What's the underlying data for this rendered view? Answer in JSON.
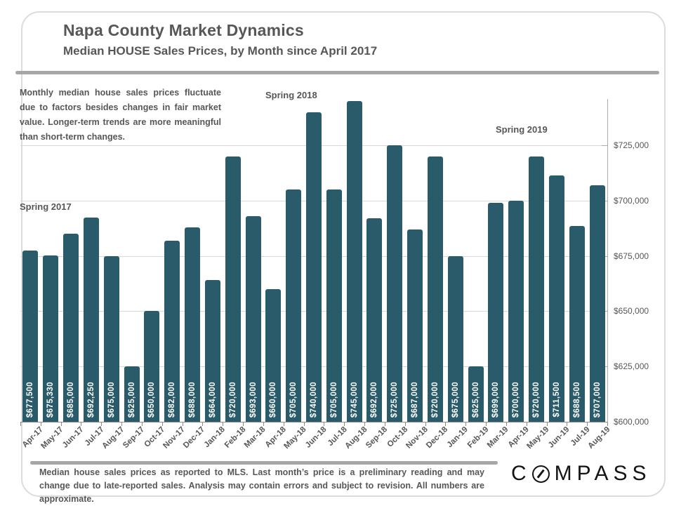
{
  "header": {
    "title": "Napa County Market Dynamics",
    "subtitle": "Median HOUSE Sales Prices, by Month since April 2017"
  },
  "annotation": "Monthly median house sales prices fluctuate due to factors besides changes in fair market value. Longer-term trends are more meaningful than short-term changes.",
  "chart_data": {
    "type": "bar",
    "title": "Median HOUSE Sales Prices, by Month since April 2017",
    "categories": [
      "Apr-17",
      "May-17",
      "Jun-17",
      "Jul-17",
      "Aug-17",
      "Sep-17",
      "Oct-17",
      "Nov-17",
      "Dec-17",
      "Jan-18",
      "Feb-18",
      "Mar-18",
      "Apr-18",
      "May-18",
      "Jun-18",
      "Jul-18",
      "Aug-18",
      "Sep-18",
      "Oct-18",
      "Nov-18",
      "Dec-18",
      "Jan-19",
      "Feb-19",
      "Mar-19",
      "Apr-19",
      "May-19",
      "Jun-19",
      "Jul-19",
      "Aug-19"
    ],
    "values": [
      677500,
      675330,
      685000,
      692250,
      675000,
      625000,
      650000,
      682000,
      688000,
      664000,
      720000,
      693000,
      660000,
      705000,
      740000,
      705000,
      745000,
      692000,
      725000,
      687000,
      720000,
      675000,
      625000,
      699000,
      700000,
      720000,
      711500,
      688500,
      707000
    ],
    "value_labels": [
      "$677,500",
      "$675,330",
      "$685,000",
      "$692,250",
      "$675,000",
      "$625,000",
      "$650,000",
      "$682,000",
      "$688,000",
      "$664,000",
      "$720,000",
      "$693,000",
      "$660,000",
      "$705,000",
      "$740,000",
      "$705,000",
      "$745,000",
      "$692,000",
      "$725,000",
      "$687,000",
      "$720,000",
      "$675,000",
      "$625,000",
      "$699,000",
      "$700,000",
      "$720,000",
      "$711,500",
      "$688,500",
      "$707,000"
    ],
    "ylim": [
      600000,
      746000
    ],
    "yticks": [
      {
        "value": 600000,
        "label": "$600,000"
      },
      {
        "value": 625000,
        "label": "$625,000"
      },
      {
        "value": 650000,
        "label": "$650,000"
      },
      {
        "value": 675000,
        "label": "$675,000"
      },
      {
        "value": 700000,
        "label": "$700,000"
      },
      {
        "value": 725000,
        "label": "$725,000"
      }
    ],
    "gridlines": [
      625000,
      650000,
      675000,
      700000,
      725000
    ],
    "grid": true,
    "legend": "none",
    "axis_side": "right",
    "bar_color": "#295b6a",
    "season_labels": [
      "Spring 2017",
      "Spring 2018",
      "Spring 2019"
    ]
  },
  "footer": {
    "disclaimer": "Median house sales prices as reported to MLS. Last month’s price is a preliminary reading and may change due to late-reported sales. Analysis may contain errors and subject to revision. All numbers are approximate.",
    "logo": {
      "prefix": "C",
      "o_icon": "compass-circle-slash",
      "suffix": "MPASS"
    }
  }
}
